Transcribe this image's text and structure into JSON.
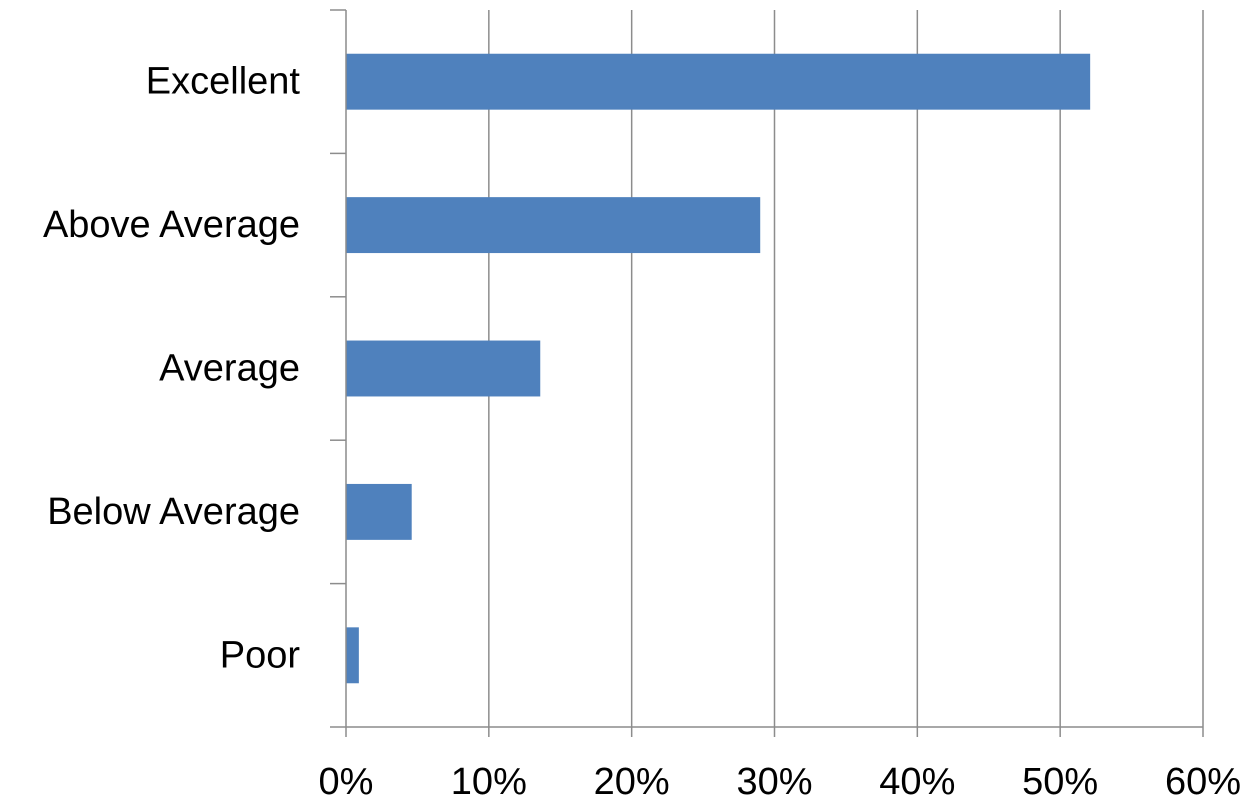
{
  "chart_data": {
    "type": "bar",
    "orientation": "horizontal",
    "categories": [
      "Excellent",
      "Above Average",
      "Average",
      "Below Average",
      "Poor"
    ],
    "values": [
      52.1,
      29.0,
      13.6,
      4.6,
      0.9
    ],
    "xlim": [
      0,
      60
    ],
    "xticks": [
      0,
      10,
      20,
      30,
      40,
      50,
      60
    ],
    "xtick_labels": [
      "0%",
      "10%",
      "20%",
      "30%",
      "40%",
      "50%",
      "60%"
    ],
    "title": "",
    "xlabel": "",
    "ylabel": "",
    "grid": "vertical",
    "legend": "none",
    "bar_color": "#4f81bd"
  }
}
